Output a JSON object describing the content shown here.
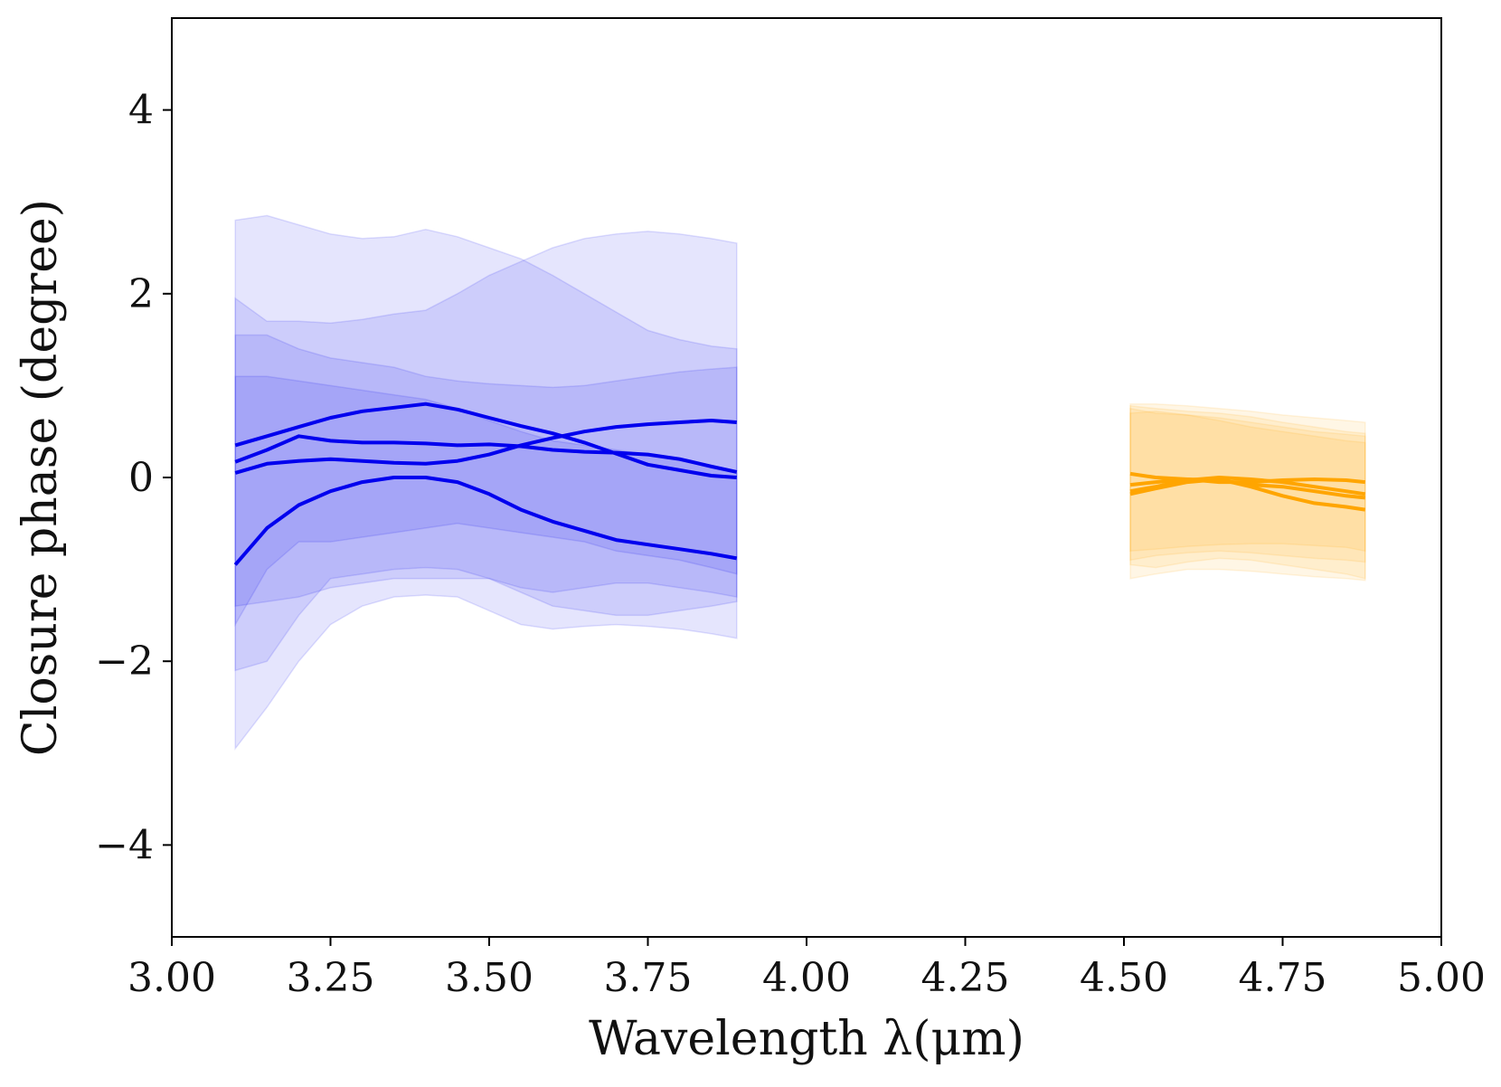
{
  "chart_data": {
    "type": "line",
    "xlabel": "Wavelength λ(μm)",
    "ylabel": "Closure phase (degree)",
    "xlim": [
      3.0,
      5.0
    ],
    "ylim": [
      -5.0,
      5.0
    ],
    "xticks": [
      3.0,
      3.25,
      3.5,
      3.75,
      4.0,
      4.25,
      4.5,
      4.75,
      5.0
    ],
    "xtick_labels": [
      "3.00",
      "3.25",
      "3.50",
      "3.75",
      "4.00",
      "4.25",
      "4.50",
      "4.75",
      "5.00"
    ],
    "yticks": [
      -4,
      -2,
      0,
      2,
      4
    ],
    "ytick_labels": [
      "−4",
      "−2",
      "0",
      "2",
      "4"
    ],
    "grid": false,
    "colors": {
      "blue_band": "#0000ee",
      "orange_band": "#ffa500"
    },
    "bands": [
      {
        "group": "blue_band",
        "x": [
          3.1,
          3.15,
          3.2,
          3.25,
          3.3,
          3.35,
          3.4,
          3.45,
          3.5,
          3.55,
          3.6,
          3.65,
          3.7,
          3.75,
          3.8,
          3.85,
          3.89
        ],
        "series": [
          {
            "values": [
              0.35,
              0.45,
              0.55,
              0.65,
              0.72,
              0.76,
              0.8,
              0.74,
              0.65,
              0.56,
              0.48,
              0.38,
              0.26,
              0.14,
              0.08,
              0.02,
              0.0
            ],
            "lower": [
              -1.6,
              -1.0,
              -0.7,
              -0.7,
              -0.65,
              -0.6,
              -0.55,
              -0.5,
              -0.55,
              -0.6,
              -0.65,
              -0.7,
              -0.8,
              -0.85,
              -0.9,
              -0.98,
              -1.05
            ],
            "upper": [
              1.95,
              1.7,
              1.7,
              1.68,
              1.72,
              1.78,
              1.82,
              2.0,
              2.2,
              2.35,
              2.5,
              2.6,
              2.65,
              2.68,
              2.65,
              2.6,
              2.55
            ]
          },
          {
            "values": [
              0.17,
              0.3,
              0.45,
              0.4,
              0.38,
              0.38,
              0.37,
              0.35,
              0.36,
              0.34,
              0.3,
              0.28,
              0.27,
              0.25,
              0.2,
              0.12,
              0.06
            ],
            "lower": [
              -1.4,
              -1.35,
              -1.3,
              -1.2,
              -1.15,
              -1.1,
              -1.1,
              -1.1,
              -1.1,
              -1.2,
              -1.25,
              -1.2,
              -1.15,
              -1.15,
              -1.2,
              -1.25,
              -1.3
            ],
            "upper": [
              2.8,
              2.85,
              2.75,
              2.65,
              2.6,
              2.62,
              2.7,
              2.62,
              2.5,
              2.38,
              2.2,
              2.0,
              1.8,
              1.6,
              1.5,
              1.43,
              1.4
            ]
          },
          {
            "values": [
              0.05,
              0.15,
              0.18,
              0.2,
              0.18,
              0.16,
              0.15,
              0.18,
              0.25,
              0.35,
              0.43,
              0.5,
              0.55,
              0.58,
              0.6,
              0.62,
              0.6
            ],
            "lower": [
              -2.1,
              -2.0,
              -1.5,
              -1.1,
              -1.05,
              -1.0,
              -0.98,
              -1.0,
              -1.1,
              -1.25,
              -1.4,
              -1.45,
              -1.5,
              -1.5,
              -1.45,
              -1.4,
              -1.35
            ],
            "upper": [
              1.55,
              1.55,
              1.4,
              1.3,
              1.25,
              1.2,
              1.1,
              1.05,
              1.02,
              1.0,
              0.98,
              1.0,
              1.05,
              1.1,
              1.15,
              1.18,
              1.2
            ]
          },
          {
            "values": [
              -0.95,
              -0.55,
              -0.3,
              -0.15,
              -0.05,
              0.0,
              0.0,
              -0.05,
              -0.18,
              -0.35,
              -0.48,
              -0.58,
              -0.68,
              -0.73,
              -0.78,
              -0.83,
              -0.88
            ],
            "lower": [
              -2.95,
              -2.5,
              -2.0,
              -1.6,
              -1.4,
              -1.3,
              -1.28,
              -1.3,
              -1.45,
              -1.6,
              -1.65,
              -1.62,
              -1.6,
              -1.62,
              -1.65,
              -1.7,
              -1.75
            ],
            "upper": [
              1.1,
              1.1,
              1.05,
              1.0,
              0.95,
              0.9,
              0.85,
              0.75,
              0.62,
              0.5,
              0.4,
              0.35,
              0.3,
              0.25,
              0.2,
              0.1,
              0.05
            ]
          }
        ]
      },
      {
        "group": "orange_band",
        "x": [
          4.51,
          4.55,
          4.6,
          4.65,
          4.7,
          4.75,
          4.8,
          4.85,
          4.88
        ],
        "series": [
          {
            "values": [
              0.04,
              0.0,
              -0.02,
              -0.05,
              -0.05,
              -0.03,
              -0.02,
              -0.03,
              -0.05
            ],
            "lower": [
              -0.8,
              -0.78,
              -0.75,
              -0.73,
              -0.72,
              -0.72,
              -0.74,
              -0.76,
              -0.8
            ],
            "upper": [
              0.8,
              0.8,
              0.78,
              0.75,
              0.72,
              0.68,
              0.65,
              0.62,
              0.6
            ]
          },
          {
            "values": [
              -0.08,
              -0.05,
              -0.02,
              -0.03,
              -0.08,
              -0.1,
              -0.15,
              -0.2,
              -0.22
            ],
            "lower": [
              -0.9,
              -0.85,
              -0.82,
              -0.8,
              -0.82,
              -0.85,
              -0.88,
              -0.9,
              -0.92
            ],
            "upper": [
              0.75,
              0.7,
              0.68,
              0.65,
              0.6,
              0.55,
              0.5,
              0.47,
              0.45
            ]
          },
          {
            "values": [
              -0.15,
              -0.1,
              -0.03,
              0.0,
              -0.02,
              -0.05,
              -0.1,
              -0.15,
              -0.18
            ],
            "lower": [
              -1.1,
              -1.05,
              -1.0,
              -1.0,
              -1.02,
              -1.05,
              -1.08,
              -1.1,
              -1.12
            ],
            "upper": [
              0.7,
              0.72,
              0.68,
              0.62,
              0.55,
              0.5,
              0.45,
              0.4,
              0.38
            ]
          },
          {
            "values": [
              -0.18,
              -0.12,
              -0.05,
              -0.02,
              -0.1,
              -0.2,
              -0.28,
              -0.32,
              -0.35
            ],
            "lower": [
              -0.95,
              -0.98,
              -0.92,
              -0.88,
              -0.9,
              -0.95,
              -1.0,
              -1.05,
              -1.1
            ],
            "upper": [
              0.78,
              0.75,
              0.72,
              0.7,
              0.66,
              0.6,
              0.55,
              0.5,
              0.48
            ]
          }
        ]
      }
    ]
  }
}
